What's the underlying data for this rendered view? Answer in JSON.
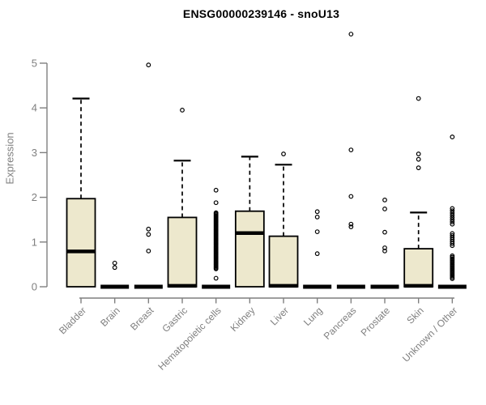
{
  "title": "ENSG00000239146 - snoU13",
  "chart_data": {
    "type": "boxplot",
    "title": "ENSG00000239146 - snoU13",
    "ylabel": "Expression",
    "xlabel": "",
    "ylim": [
      0,
      5
    ],
    "yticks": [
      0,
      1,
      2,
      3,
      4,
      5
    ],
    "grid": false,
    "legend": "none",
    "categories": [
      "Bladder",
      "Brain",
      "Breast",
      "Gastric",
      "Hematopoietic cells",
      "Kidney",
      "Liver",
      "Lung",
      "Pancreas",
      "Prostate",
      "Skin",
      "Unknown / Other"
    ],
    "boxes": [
      {
        "name": "Bladder",
        "flat": false,
        "q1": 0,
        "median": 0.79,
        "q3": 1.97,
        "whisker_low": 0,
        "whisker_high": 4.21,
        "outliers": [],
        "bands": []
      },
      {
        "name": "Brain",
        "flat": true,
        "q1": 0,
        "median": 0,
        "q3": 0,
        "whisker_low": 0,
        "whisker_high": 0,
        "outliers": [
          0.53,
          0.43
        ],
        "bands": []
      },
      {
        "name": "Breast",
        "flat": true,
        "q1": 0,
        "median": 0,
        "q3": 0,
        "whisker_low": 0,
        "whisker_high": 0,
        "outliers": [
          4.96,
          1.29,
          1.17,
          0.8
        ],
        "bands": []
      },
      {
        "name": "Gastric",
        "flat": false,
        "q1": 0,
        "median": 0.02,
        "q3": 1.55,
        "whisker_low": 0,
        "whisker_high": 2.82,
        "outliers": [
          3.95
        ],
        "bands": []
      },
      {
        "name": "Hematopoietic cells",
        "flat": true,
        "q1": 0,
        "median": 0,
        "q3": 0,
        "whisker_low": 0,
        "whisker_high": 0,
        "outliers": [
          2.16,
          1.88,
          0.19
        ],
        "bands": [
          {
            "from": 0.4,
            "to": 1.67,
            "step": 0.022
          }
        ]
      },
      {
        "name": "Kidney",
        "flat": false,
        "q1": 0,
        "median": 1.2,
        "q3": 1.69,
        "whisker_low": 0,
        "whisker_high": 2.91,
        "outliers": [],
        "bands": []
      },
      {
        "name": "Liver",
        "flat": false,
        "q1": 0,
        "median": 0.02,
        "q3": 1.13,
        "whisker_low": 0,
        "whisker_high": 2.73,
        "outliers": [
          2.97
        ],
        "bands": []
      },
      {
        "name": "Lung",
        "flat": true,
        "q1": 0,
        "median": 0,
        "q3": 0,
        "whisker_low": 0,
        "whisker_high": 0,
        "outliers": [
          1.68,
          1.56,
          1.23,
          0.74
        ],
        "bands": []
      },
      {
        "name": "Pancreas",
        "flat": true,
        "q1": 0,
        "median": 0,
        "q3": 0,
        "whisker_low": 0,
        "whisker_high": 0,
        "outliers": [
          5.65,
          3.06,
          2.02,
          1.4,
          1.34
        ],
        "bands": []
      },
      {
        "name": "Prostate",
        "flat": true,
        "q1": 0,
        "median": 0,
        "q3": 0,
        "whisker_low": 0,
        "whisker_high": 0,
        "outliers": [
          1.94,
          1.74,
          1.22,
          0.87,
          0.8
        ],
        "bands": []
      },
      {
        "name": "Skin",
        "flat": false,
        "q1": 0,
        "median": 0.02,
        "q3": 0.85,
        "whisker_low": 0,
        "whisker_high": 1.66,
        "outliers": [
          4.21,
          2.97,
          2.85,
          2.66
        ],
        "bands": []
      },
      {
        "name": "Unknown / Other",
        "flat": true,
        "q1": 0,
        "median": 0,
        "q3": 0,
        "whisker_low": 0,
        "whisker_high": 0,
        "outliers": [
          3.35
        ],
        "bands": [
          {
            "from": 1.4,
            "to": 1.76,
            "step": 0.05
          },
          {
            "from": 0.92,
            "to": 1.19,
            "step": 0.045
          },
          {
            "from": 0.18,
            "to": 0.7,
            "step": 0.032
          }
        ]
      }
    ],
    "colors": {
      "box_fill": "#EDE8CD",
      "box_border": "#000000",
      "median": "#000000",
      "outlier": "#000000",
      "axis": "#7f7f7f",
      "tick_label": "#7f7f7f",
      "title": "#000000",
      "background": "#ffffff"
    }
  }
}
